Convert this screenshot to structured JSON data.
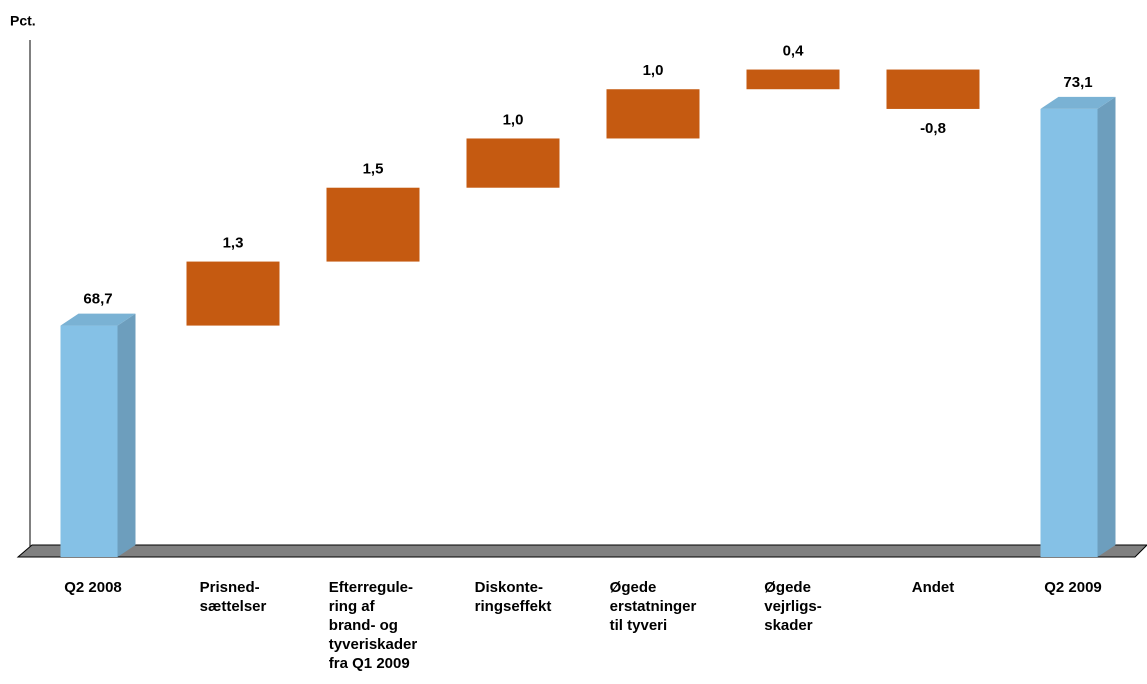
{
  "chart_data": {
    "type": "waterfall",
    "ylabel": "Pct.",
    "categories": [
      "Q2 2008",
      "Prisned-\nsættelser",
      "Efterregule-\nring af\nbrand- og\ntyveriskader\nfra Q1 2009",
      "Diskonte-\nringseffekt",
      "Øgede\nerstatninger\ntil tyveri",
      "Øgede\nvejrligs-\nskader",
      "Andet",
      "Q2 2009"
    ],
    "values": [
      68.7,
      1.3,
      1.5,
      1.0,
      1.0,
      0.4,
      -0.8,
      73.1
    ],
    "value_labels": [
      "68,7",
      "1,3",
      "1,5",
      "1,0",
      "1,0",
      "0,4",
      "-0,8",
      "73,1"
    ],
    "is_total": [
      true,
      false,
      false,
      false,
      false,
      false,
      false,
      true
    ],
    "total_color": "#85c1e6",
    "step_color": "#c55a11",
    "ylim": [
      64,
      74.5
    ]
  }
}
